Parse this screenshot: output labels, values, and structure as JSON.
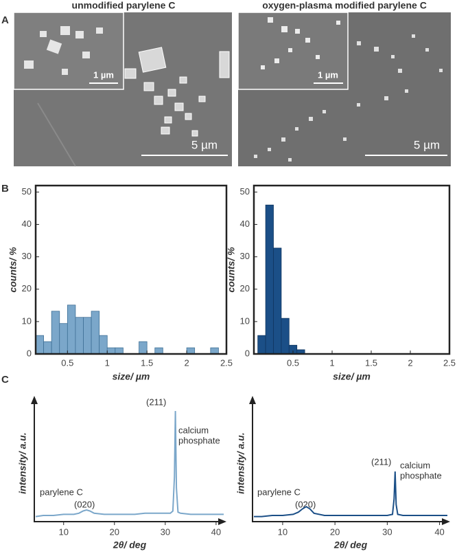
{
  "panel_labels": [
    "A",
    "B",
    "C"
  ],
  "sem": [
    {
      "title": "unmodified parylene C",
      "inset_scale": "1 µm",
      "scale": "5 µm"
    },
    {
      "title": "oxygen-plasma modified parylene C",
      "inset_scale": "1 µm",
      "scale": "5 µm"
    }
  ],
  "chart_data": [
    {
      "type": "histogram",
      "xlabel": "size/ µm",
      "ylabel": "counts/ %",
      "color": "#7ba7ca",
      "edge": "#3f6f95",
      "bins": [
        0.1,
        0.2,
        0.3,
        0.4,
        0.5,
        0.6,
        0.7,
        0.8,
        0.9,
        1.0,
        1.1,
        1.2,
        1.3,
        1.4,
        1.5,
        1.6,
        1.7,
        1.8,
        1.9,
        2.0,
        2.1,
        2.2,
        2.3,
        2.4
      ],
      "values": [
        5.7,
        3.8,
        13.2,
        9.4,
        15.1,
        11.3,
        11.3,
        13.2,
        5.7,
        1.9,
        1.9,
        0,
        0,
        3.8,
        0,
        1.9,
        0,
        0,
        0,
        1.9,
        0,
        0,
        1.9
      ],
      "xlim": [
        0.1,
        2.5
      ],
      "xticks": [
        0.5,
        1.0,
        1.5,
        2.0,
        2.5
      ],
      "ylim": [
        0,
        52
      ],
      "yticks": [
        0,
        10,
        20,
        30,
        40,
        50
      ]
    },
    {
      "type": "histogram",
      "xlabel": "size/ µm",
      "ylabel": "counts/ %",
      "color": "#1b4f87",
      "edge": "#0f355f",
      "bins": [
        0.05,
        0.15,
        0.25,
        0.35,
        0.45,
        0.55,
        0.65
      ],
      "values": [
        5.7,
        46,
        32.7,
        11,
        2.7,
        1.3
      ],
      "xlim": [
        0.0,
        2.5
      ],
      "xticks": [
        0.5,
        1.0,
        1.5,
        2.0,
        2.5
      ],
      "ylim": [
        0,
        52
      ],
      "yticks": [
        0,
        10,
        20,
        30,
        40,
        50
      ]
    },
    {
      "type": "line",
      "xlabel": "2θ/ deg",
      "ylabel": "intensity/ a.u.",
      "color": "#7ba7ca",
      "annotations": {
        "peak": "(211)",
        "phase": [
          "calcium",
          "phosphate"
        ],
        "substrate": "parylene C",
        "bump": "(020)"
      },
      "x": [
        4.5,
        6,
        8,
        10,
        12,
        13,
        13.8,
        14.5,
        15.2,
        16,
        18,
        20,
        22,
        24,
        26,
        28,
        30,
        31,
        31.5,
        31.8,
        32,
        32.2,
        32.5,
        33,
        35,
        38,
        40,
        41.5
      ],
      "values": [
        4,
        5,
        5,
        6,
        6,
        7,
        9,
        10,
        9,
        7,
        6,
        6,
        6,
        6,
        7,
        7,
        7,
        7,
        9,
        40,
        100,
        30,
        8,
        7,
        6,
        6,
        6,
        6
      ],
      "xlim": [
        4.5,
        41.5
      ],
      "xticks": [
        10,
        20,
        30,
        40
      ],
      "ylim": [
        0,
        105
      ]
    },
    {
      "type": "line",
      "xlabel": "2θ/ deg",
      "ylabel": "intensity/ a.u.",
      "color": "#1b4f87",
      "annotations": {
        "peak": "(211)",
        "phase": [
          "calcium",
          "phosphate"
        ],
        "substrate": "parylene C",
        "bump": "(020)"
      },
      "x": [
        4.5,
        6,
        8,
        10,
        12,
        13,
        13.8,
        14.5,
        15.2,
        16,
        18,
        20,
        22,
        24,
        26,
        28,
        30,
        31,
        31.3,
        31.5,
        31.7,
        32,
        33,
        35,
        38,
        40,
        41.5
      ],
      "values": [
        4,
        4,
        5,
        5,
        6,
        8,
        11,
        13,
        11,
        7,
        5,
        5,
        5,
        5,
        5,
        5,
        5,
        6,
        20,
        45,
        15,
        6,
        5,
        5,
        5,
        5,
        5
      ],
      "xlim": [
        4.5,
        41.5
      ],
      "xticks": [
        10,
        20,
        30,
        40
      ],
      "ylim": [
        0,
        105
      ]
    }
  ]
}
